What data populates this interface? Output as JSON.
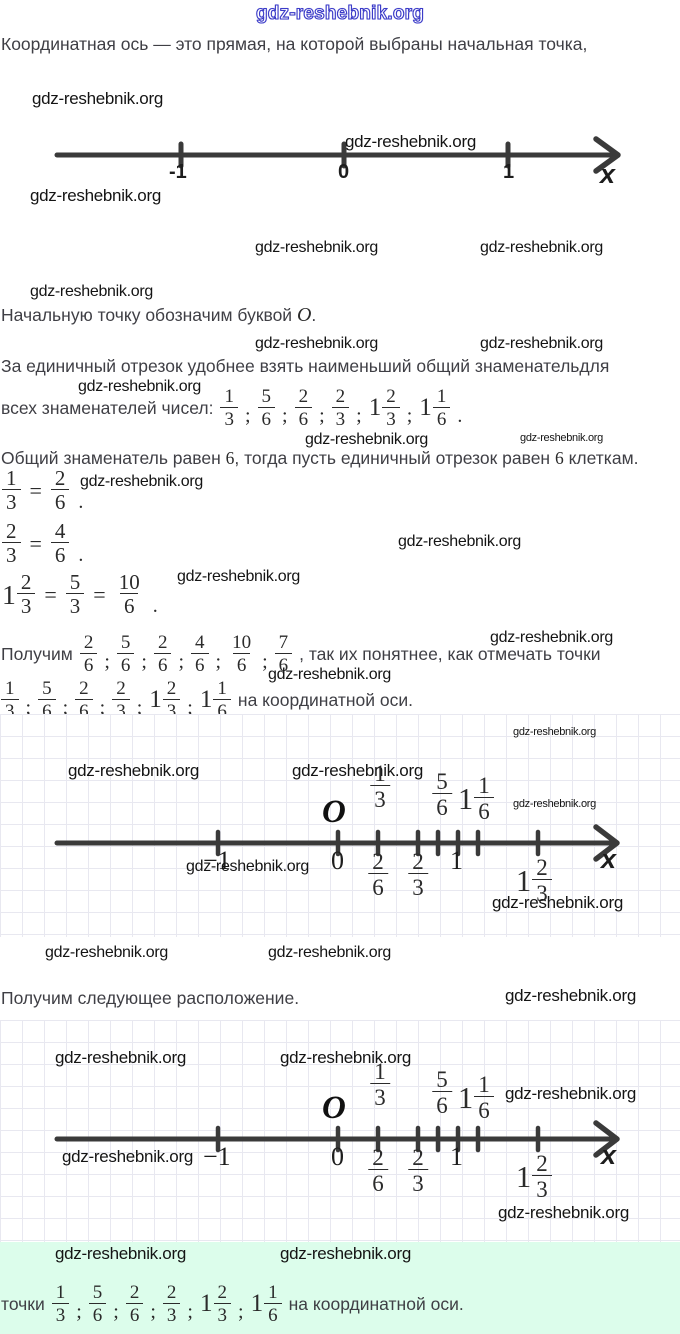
{
  "watermark": {
    "text": "gdz-reshebnik.org"
  },
  "punct": {
    "semi": ";",
    "dot": ".",
    "eq": "="
  },
  "intro": "Координатная ось — это прямая, на которой выбраны начальная точка,",
  "origin_para": {
    "t1": "Начальную точку обозначим буквой ",
    "sym": "O",
    "t2": "."
  },
  "unit_para": {
    "line1": "За единичный отрезок удобнее взять наименьший общий знаменательдля",
    "line2": "всех знаменателей чисел:"
  },
  "common_para": {
    "t1": "Общий знаменатель равен ",
    "n1": "6",
    "t2": ", тогда пусть единичный отрезок равен ",
    "n2": "6",
    "t3": " клеткам."
  },
  "eq1": {
    "a": {
      "num": "1",
      "den": "3"
    },
    "b": {
      "num": "2",
      "den": "6"
    }
  },
  "eq2": {
    "a": {
      "num": "2",
      "den": "3"
    },
    "b": {
      "num": "4",
      "den": "6"
    }
  },
  "eq3": {
    "a": {
      "whole": "1",
      "num": "2",
      "den": "3"
    },
    "b": {
      "num": "5",
      "den": "3"
    },
    "c": {
      "num": "10",
      "den": "6"
    }
  },
  "poluchim": {
    "prefix": "Получим",
    "suffix": ", так их понятнее, как отмечать точки"
  },
  "points_line": {
    "suffix": "на координатной оси."
  },
  "next_para": "Получим следующее расположение.",
  "bottom": {
    "prefix": "точки",
    "suffix": "на координатной оси."
  },
  "fr_given": [
    {
      "num": "1",
      "den": "3"
    },
    {
      "num": "5",
      "den": "6"
    },
    {
      "num": "2",
      "den": "6"
    },
    {
      "num": "2",
      "den": "3"
    },
    {
      "whole": "1",
      "num": "2",
      "den": "3"
    },
    {
      "whole": "1",
      "num": "1",
      "den": "6"
    }
  ],
  "fr_sixths": [
    {
      "num": "2",
      "den": "6"
    },
    {
      "num": "5",
      "den": "6"
    },
    {
      "num": "2",
      "den": "6"
    },
    {
      "num": "4",
      "den": "6"
    },
    {
      "num": "10",
      "den": "6"
    },
    {
      "num": "7",
      "den": "6"
    }
  ],
  "axis1": {
    "m1": "-1",
    "zero": "0",
    "one": "1",
    "x": "x"
  },
  "axis2": {
    "origin": "O",
    "x": "x",
    "m1": "−1",
    "zero": "0",
    "one": "1",
    "f13": {
      "num": "1",
      "den": "3"
    },
    "f56": {
      "num": "5",
      "den": "6"
    },
    "f116": {
      "whole": "1",
      "num": "1",
      "den": "6"
    },
    "f26": {
      "num": "2",
      "den": "6"
    },
    "f23": {
      "num": "2",
      "den": "3"
    },
    "f123": {
      "whole": "1",
      "num": "2",
      "den": "3"
    }
  },
  "colors": {
    "watermark_blue": "#3b3bc8",
    "grid_line": "#e8e8f0",
    "green_bg": "#dcfdeb",
    "axis": "#3a3a3a"
  }
}
